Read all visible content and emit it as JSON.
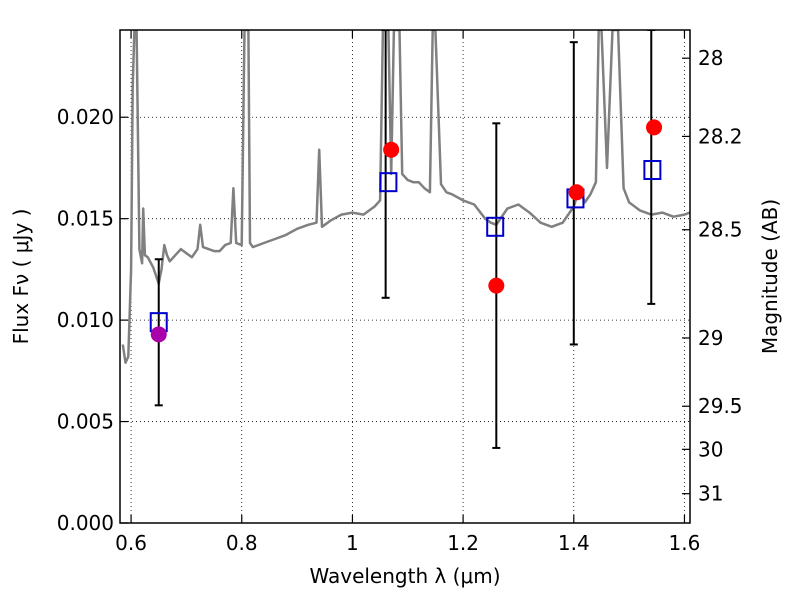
{
  "chart_data": {
    "type": "scatter",
    "xlabel": "Wavelength  λ (μm)",
    "ylabel_left": "Flux  Fν  ( μJy )",
    "ylabel_right": "Magnitude (AB)",
    "xlim": [
      0.58,
      1.61
    ],
    "ylim": [
      0.0,
      0.0243
    ],
    "x_ticks": [
      0.6,
      0.8,
      1.0,
      1.2,
      1.4,
      1.6
    ],
    "x_tick_labels": [
      "0.6",
      "0.8",
      "1",
      "1.2",
      "1.4",
      "1.6"
    ],
    "y_ticks": [
      0.0,
      0.005,
      0.01,
      0.015,
      0.02
    ],
    "y_tick_labels": [
      "0.000",
      "0.005",
      "0.010",
      "0.015",
      "0.020"
    ],
    "right_ticks": [
      28,
      28.2,
      28.5,
      29,
      29.5,
      30,
      31
    ],
    "right_tick_labels": [
      "28",
      "28.2",
      "28.5",
      "29",
      "29.5",
      "30",
      "31"
    ],
    "grid": true,
    "colors": {
      "model": "#808080",
      "observed": "#ff0000",
      "observed_first": "#aa00aa",
      "synthetic": "#0000cc",
      "errorbar": "#000000"
    },
    "series": [
      {
        "kind": "model_spectrum",
        "x": [
          0.585,
          0.59,
          0.595,
          0.6,
          0.603,
          0.606,
          0.61,
          0.615,
          0.62,
          0.622,
          0.625,
          0.63,
          0.64,
          0.65,
          0.655,
          0.66,
          0.665,
          0.67,
          0.68,
          0.69,
          0.7,
          0.71,
          0.715,
          0.72,
          0.725,
          0.73,
          0.74,
          0.75,
          0.76,
          0.77,
          0.78,
          0.785,
          0.79,
          0.8,
          0.805,
          0.808,
          0.812,
          0.815,
          0.82,
          0.84,
          0.86,
          0.88,
          0.9,
          0.92,
          0.935,
          0.94,
          0.945,
          0.95,
          0.96,
          0.98,
          1.0,
          1.02,
          1.04,
          1.05,
          1.055,
          1.06,
          1.065,
          1.07,
          1.075,
          1.08,
          1.085,
          1.09,
          1.1,
          1.11,
          1.12,
          1.13,
          1.14,
          1.145,
          1.15,
          1.16,
          1.17,
          1.18,
          1.2,
          1.22,
          1.24,
          1.25,
          1.26,
          1.28,
          1.3,
          1.32,
          1.34,
          1.36,
          1.38,
          1.4,
          1.41,
          1.42,
          1.43,
          1.44,
          1.445,
          1.45,
          1.46,
          1.47,
          1.48,
          1.49,
          1.5,
          1.52,
          1.54,
          1.56,
          1.58,
          1.6,
          1.61
        ],
        "y": [
          0.0088,
          0.0079,
          0.0082,
          0.0125,
          0.0215,
          0.0243,
          0.0243,
          0.0135,
          0.0128,
          0.0155,
          0.0132,
          0.0131,
          0.0126,
          0.0118,
          0.0125,
          0.0137,
          0.0132,
          0.0129,
          0.0132,
          0.0135,
          0.0133,
          0.0131,
          0.0133,
          0.0135,
          0.0147,
          0.0136,
          0.0135,
          0.0134,
          0.0134,
          0.0137,
          0.0138,
          0.0165,
          0.0138,
          0.0137,
          0.0243,
          0.0243,
          0.0243,
          0.0138,
          0.0136,
          0.0138,
          0.014,
          0.0142,
          0.0145,
          0.0147,
          0.0148,
          0.0184,
          0.0146,
          0.0147,
          0.0149,
          0.0152,
          0.0153,
          0.0152,
          0.0156,
          0.0159,
          0.0243,
          0.0243,
          0.0243,
          0.0172,
          0.0243,
          0.0243,
          0.0243,
          0.0172,
          0.0169,
          0.0168,
          0.0168,
          0.0165,
          0.0163,
          0.0243,
          0.0243,
          0.0167,
          0.0163,
          0.0162,
          0.0159,
          0.0157,
          0.015,
          0.0148,
          0.0147,
          0.0155,
          0.0157,
          0.0153,
          0.0148,
          0.0146,
          0.0148,
          0.0156,
          0.0165,
          0.0158,
          0.0162,
          0.0168,
          0.0243,
          0.0243,
          0.0175,
          0.0243,
          0.0243,
          0.0165,
          0.0158,
          0.0154,
          0.0152,
          0.0153,
          0.0151,
          0.0152,
          0.0153
        ]
      },
      {
        "kind": "observed_errorbar",
        "x": [
          0.65,
          1.06,
          1.26,
          1.4,
          1.54
        ],
        "y_low": [
          0.0058,
          0.0111,
          0.0037,
          0.0088,
          0.0108
        ],
        "y_high": [
          0.013,
          0.0243,
          0.0197,
          0.0237,
          0.0243
        ]
      },
      {
        "kind": "observed",
        "x": [
          0.65,
          1.07,
          1.26,
          1.405,
          1.545
        ],
        "y": [
          0.0093,
          0.0184,
          0.0117,
          0.0163,
          0.0195
        ]
      },
      {
        "kind": "synthetic",
        "x": [
          0.65,
          1.065,
          1.258,
          1.403,
          1.542
        ],
        "y": [
          0.0099,
          0.0168,
          0.0146,
          0.016,
          0.0174
        ]
      }
    ]
  }
}
